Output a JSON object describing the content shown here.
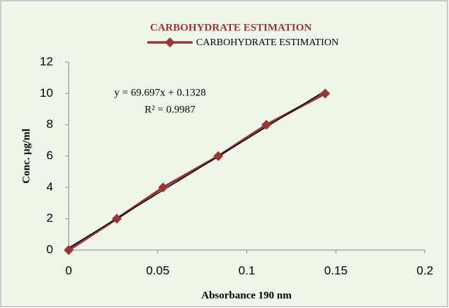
{
  "chart_data": {
    "type": "line",
    "title": "CARBOHYDRATE ESTIMATION",
    "x_label": "Absorbance 190 nm",
    "y_label": "Conc. µg/ml",
    "x": [
      0,
      0.027,
      0.053,
      0.084,
      0.111,
      0.144
    ],
    "series": [
      {
        "name": "CARBOHYDRATE ESTIMATION",
        "color": "#953735",
        "values": [
          0,
          2,
          4,
          6,
          8,
          10
        ]
      }
    ],
    "trendline": {
      "equation": "y = 69.697x + 0.1328",
      "r_squared": "R² = 0.9987",
      "slope": 69.697,
      "intercept": 0.1328,
      "color": "#000000"
    },
    "xlim": [
      0,
      0.2
    ],
    "xticks": [
      0,
      0.05,
      0.1,
      0.15,
      0.2
    ],
    "ylim": [
      0,
      12
    ],
    "yticks": [
      0,
      2,
      4,
      6,
      8,
      10,
      12
    ],
    "grid": false,
    "legend": "top"
  }
}
